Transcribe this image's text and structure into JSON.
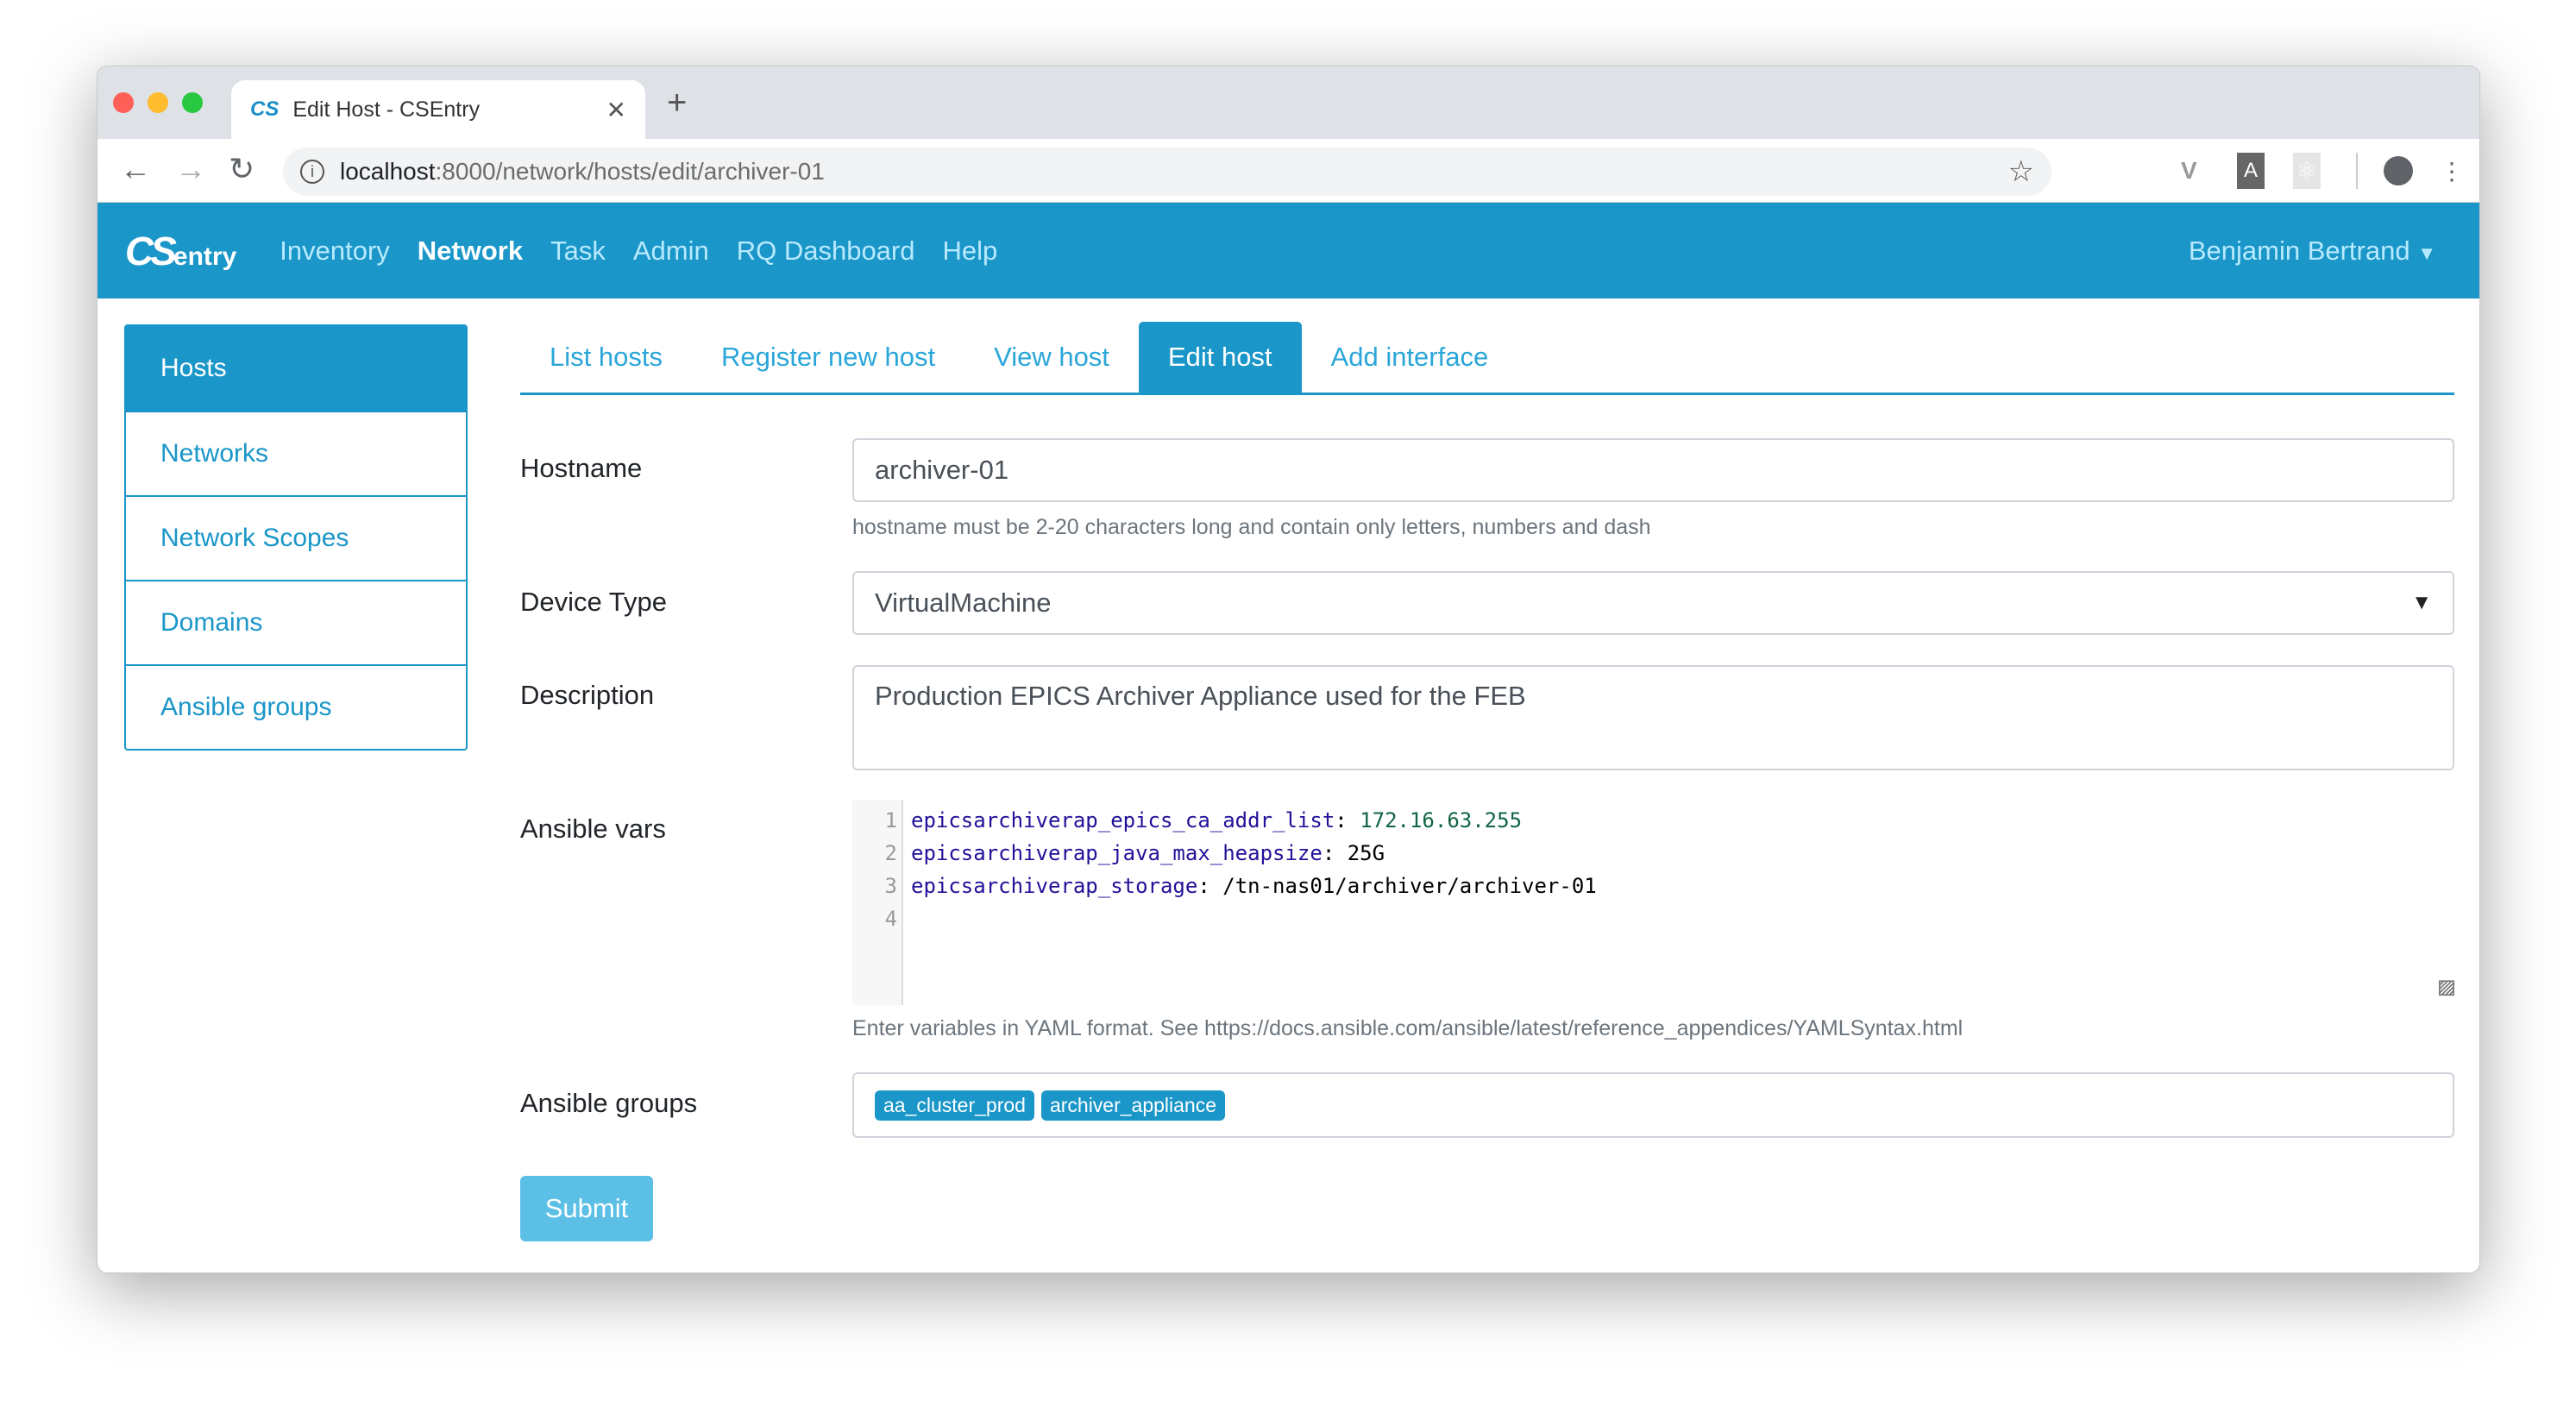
{
  "browser": {
    "tab_title": "Edit Host - CSEntry",
    "favicon": "CS",
    "url_host": "localhost",
    "url_path": ":8000/network/hosts/edit/archiver-01"
  },
  "nav": {
    "logo": "CS",
    "logo_suffix": "entry",
    "items": [
      {
        "label": "Inventory"
      },
      {
        "label": "Network"
      },
      {
        "label": "Task"
      },
      {
        "label": "Admin"
      },
      {
        "label": "RQ Dashboard"
      },
      {
        "label": "Help"
      }
    ],
    "user": "Benjamin Bertrand"
  },
  "sidebar": {
    "items": [
      {
        "label": "Hosts"
      },
      {
        "label": "Networks"
      },
      {
        "label": "Network Scopes"
      },
      {
        "label": "Domains"
      },
      {
        "label": "Ansible groups"
      }
    ]
  },
  "tabs": [
    {
      "label": "List hosts"
    },
    {
      "label": "Register new host"
    },
    {
      "label": "View host"
    },
    {
      "label": "Edit host"
    },
    {
      "label": "Add interface"
    }
  ],
  "form": {
    "hostname": {
      "label": "Hostname",
      "value": "archiver-01",
      "help": "hostname must be 2-20 characters long and contain only letters, numbers and dash"
    },
    "device_type": {
      "label": "Device Type",
      "value": "VirtualMachine"
    },
    "description": {
      "label": "Description",
      "value": "Production EPICS Archiver Appliance used for the FEB"
    },
    "ansible_vars": {
      "label": "Ansible vars",
      "lines": [
        {
          "key": "epicsarchiverap_epics_ca_addr_list",
          "value": "172.16.63.255"
        },
        {
          "key": "epicsarchiverap_java_max_heapsize",
          "value": "25G"
        },
        {
          "key": "epicsarchiverap_storage",
          "value": "/tn-nas01/archiver/archiver-01"
        }
      ],
      "line_numbers": [
        "1",
        "2",
        "3",
        "4"
      ],
      "help": "Enter variables in YAML format. See https://docs.ansible.com/ansible/latest/reference_appendices/YAMLSyntax.html"
    },
    "ansible_groups": {
      "label": "Ansible groups",
      "values": [
        "aa_cluster_prod",
        "archiver_appliance"
      ]
    },
    "submit": "Submit"
  },
  "colors": {
    "primary": "#1a96c8"
  }
}
